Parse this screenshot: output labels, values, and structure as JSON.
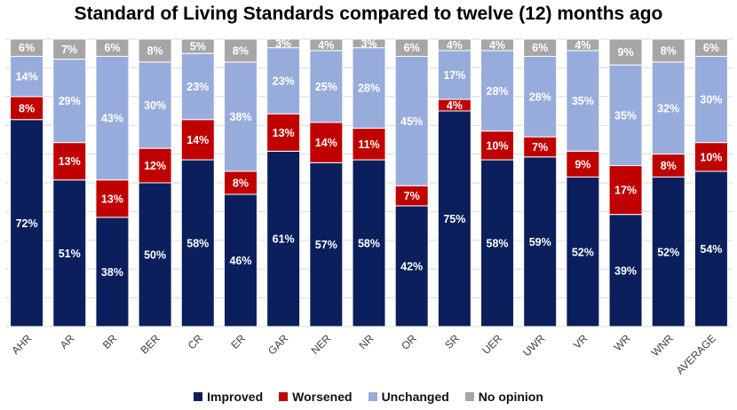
{
  "chart_data": {
    "type": "bar",
    "stacked": true,
    "percent": true,
    "title": "Standard of Living Standards compared to twelve (12) months ago",
    "categories": [
      "AHR",
      "AR",
      "BR",
      "BER",
      "CR",
      "ER",
      "GAR",
      "NER",
      "NR",
      "OR",
      "SR",
      "UER",
      "UWR",
      "VR",
      "WR",
      "WNR",
      "AVERAGE"
    ],
    "series": [
      {
        "name": "Improved",
        "color": "#0a1f5c",
        "values": [
          72,
          51,
          38,
          50,
          58,
          46,
          61,
          57,
          58,
          42,
          75,
          58,
          59,
          52,
          39,
          52,
          54
        ]
      },
      {
        "name": "Worsened",
        "color": "#c00000",
        "values": [
          8,
          13,
          13,
          12,
          14,
          8,
          13,
          14,
          11,
          7,
          4,
          10,
          7,
          9,
          17,
          8,
          10
        ]
      },
      {
        "name": "Unchanged",
        "color": "#98acdc",
        "values": [
          14,
          29,
          43,
          30,
          23,
          38,
          23,
          25,
          28,
          45,
          17,
          28,
          28,
          35,
          35,
          32,
          30
        ]
      },
      {
        "name": "No opinion",
        "color": "#a6a6a6",
        "values": [
          6,
          7,
          6,
          8,
          5,
          8,
          3,
          4,
          3,
          6,
          4,
          4,
          6,
          4,
          9,
          8,
          6
        ]
      }
    ],
    "ylim": [
      0,
      100
    ],
    "grid": true,
    "legend_position": "bottom"
  }
}
